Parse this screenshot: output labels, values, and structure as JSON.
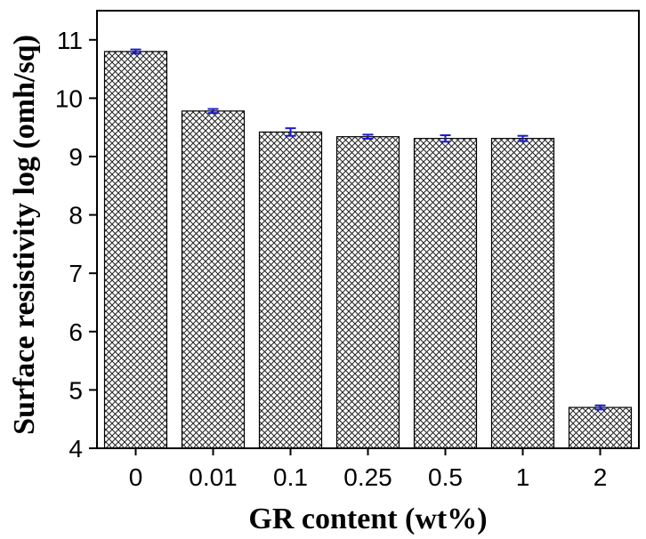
{
  "chart_data": {
    "type": "bar",
    "title": "",
    "xlabel": "GR content (wt%)",
    "ylabel": "Surface resistivity log (omh/sq)",
    "categories": [
      "0",
      "0.01",
      "0.1",
      "0.25",
      "0.5",
      "1",
      "2"
    ],
    "values": [
      10.8,
      9.78,
      9.42,
      9.34,
      9.31,
      9.31,
      4.7
    ],
    "errors": [
      0.02,
      0.02,
      0.05,
      0.02,
      0.04,
      0.03,
      0.02
    ],
    "ylim": [
      4,
      11.5
    ],
    "yticks": [
      "4",
      "5",
      "6",
      "7",
      "8",
      "9",
      "10",
      "11"
    ],
    "grid": false,
    "bar_fill": "crosshatch",
    "error_bar_color": "#1a1acc"
  }
}
